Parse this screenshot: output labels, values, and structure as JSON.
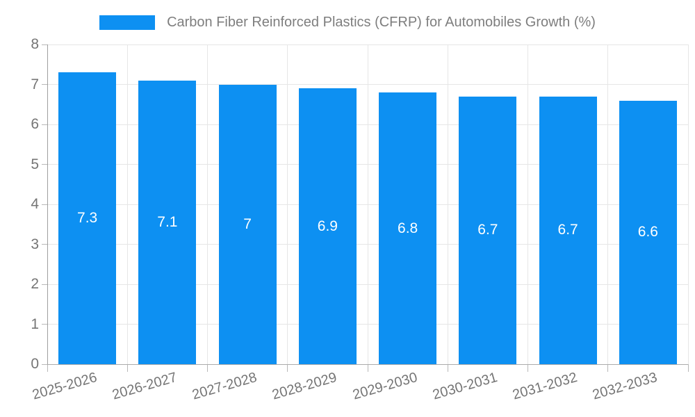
{
  "chart_data": {
    "type": "bar",
    "title": "Carbon Fiber Reinforced Plastics (CFRP) for Automobiles Growth (%)",
    "categories": [
      "2025-2026",
      "2026-2027",
      "2027-2028",
      "2028-2029",
      "2029-2030",
      "2030-2031",
      "2031-2032",
      "2032-2033"
    ],
    "values": [
      7.3,
      7.1,
      7,
      6.9,
      6.8,
      6.7,
      6.7,
      6.6
    ],
    "bar_value_labels": [
      "7.3",
      "7.1",
      "7",
      "6.9",
      "6.8",
      "6.7",
      "6.7",
      "6.6"
    ],
    "xlabel": "",
    "ylabel": "",
    "ylim": [
      0,
      8
    ],
    "yticks": [
      "0",
      "1",
      "2",
      "3",
      "4",
      "5",
      "6",
      "7",
      "8"
    ],
    "grid": true,
    "legend_position": "top",
    "colors": {
      "bar": "#0d90f2",
      "value_label": "#ffffff",
      "axis_text": "#757575",
      "title_text": "#7e7e7e",
      "gridline": "#e6e6e6",
      "axis_line": "#9e9e9e",
      "baseline": "#ababab",
      "tick": "#b8b8b8",
      "background": "#ffffff"
    }
  }
}
